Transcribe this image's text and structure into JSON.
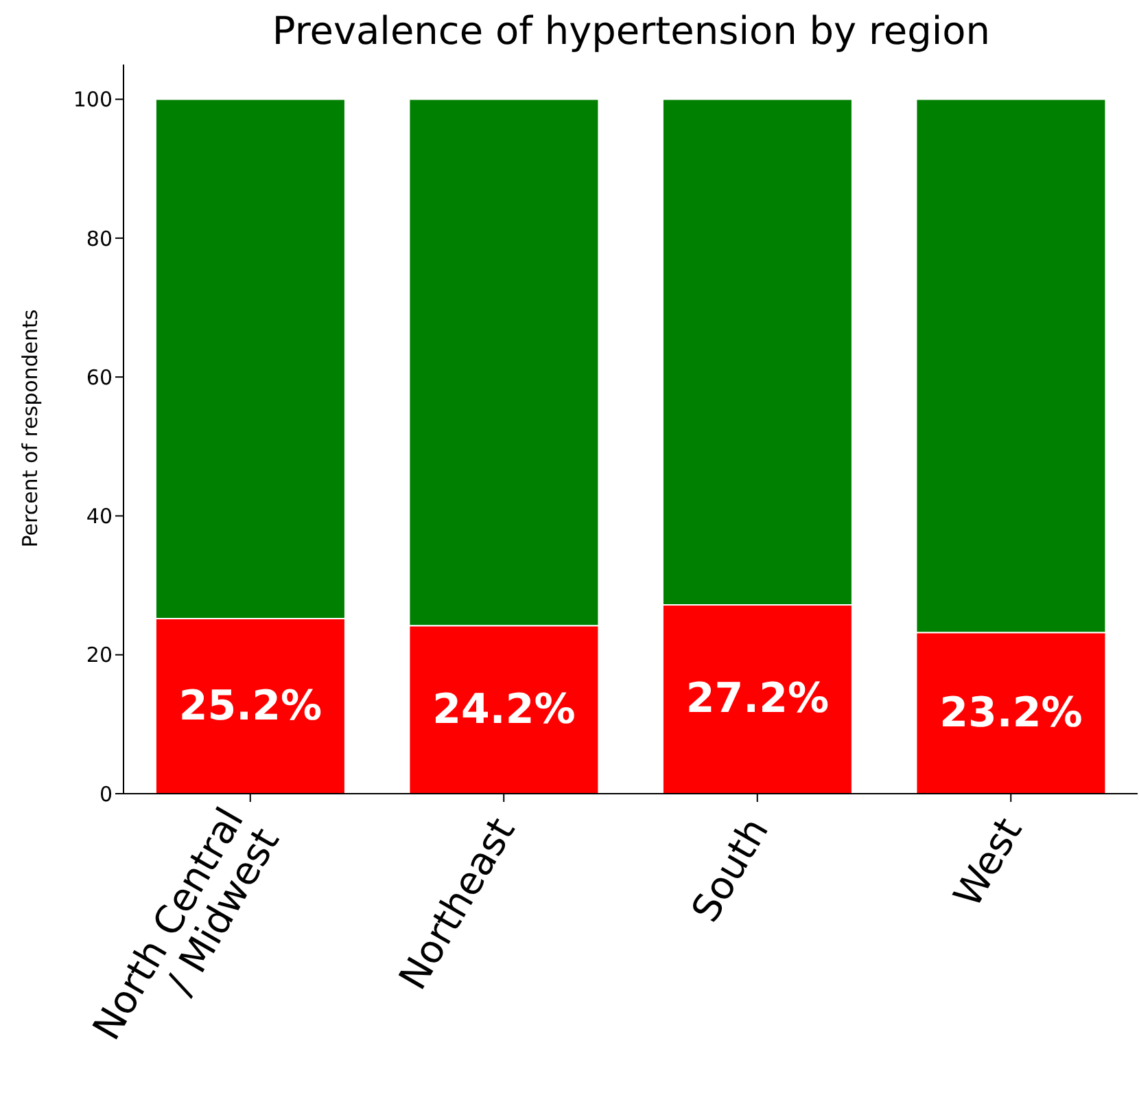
{
  "chart_data": {
    "type": "bar",
    "title": "Prevalence of hypertension by region",
    "ylabel": "Percent of respondents",
    "categories": [
      "North Central\n/ Midwest",
      "Northeast",
      "South",
      "West"
    ],
    "stacked": true,
    "series": [
      {
        "color": "#ff0000",
        "values": [
          25.2,
          24.2,
          27.2,
          23.2
        ],
        "value_labels": [
          "25.2%",
          "24.2%",
          "27.2%",
          "23.2%"
        ]
      },
      {
        "color": "#008000",
        "values": [
          74.8,
          75.8,
          72.8,
          76.8
        ]
      }
    ],
    "ylim": [
      0,
      105
    ],
    "yticks": [
      0,
      20,
      40,
      60,
      80,
      100
    ],
    "grid": false,
    "legend": false
  }
}
